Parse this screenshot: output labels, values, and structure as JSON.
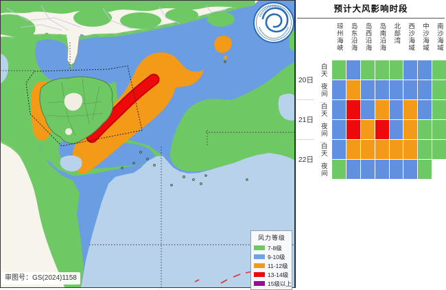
{
  "panel": {
    "title": "预计大风影响时段",
    "columns": [
      "琼州海峡",
      "岛东沿海",
      "岛西沿海",
      "岛南沿海",
      "北部湾",
      "西沙海域",
      "中沙海域",
      "南沙海域"
    ],
    "rows": [
      {
        "date": "20日",
        "period": "白天",
        "cells": [
          "green",
          "blue",
          "green",
          "green",
          "green",
          "blue",
          "blue",
          "green"
        ]
      },
      {
        "date": "20日",
        "period": "夜间",
        "cells": [
          "blue",
          "orange",
          "blue",
          "blue",
          "blue",
          "blue",
          "blue",
          "green"
        ]
      },
      {
        "date": "21日",
        "period": "白天",
        "cells": [
          "blue",
          "red",
          "blue",
          "orange",
          "blue",
          "orange",
          "blue",
          "green"
        ]
      },
      {
        "date": "21日",
        "period": "夜间",
        "cells": [
          "blue",
          "red",
          "orange",
          "red",
          "blue",
          "orange",
          "green",
          "green"
        ]
      },
      {
        "date": "22日",
        "period": "白天",
        "cells": [
          "blue",
          "orange",
          "orange",
          "orange",
          "orange",
          "orange",
          "green",
          "green"
        ]
      },
      {
        "date": "22日",
        "period": "夜间",
        "cells": [
          "green",
          "blue",
          "blue",
          "blue",
          "blue",
          "blue",
          "green",
          "none"
        ]
      }
    ]
  },
  "legend": {
    "title": "风力等级",
    "items": [
      {
        "label": "7-8级",
        "color": "#6ec964"
      },
      {
        "label": "9-10级",
        "color": "#6ba4e8"
      },
      {
        "label": "11-12级",
        "color": "#f39a18"
      },
      {
        "label": "13-14级",
        "color": "#ee0a0a"
      },
      {
        "label": "15级以上",
        "color": "#970f97"
      }
    ]
  },
  "map": {
    "approval_number": "审图号：GS(2024)1158"
  },
  "colors": {
    "green": "#6ec964",
    "blue": "#6190e0",
    "orange": "#f39a18",
    "red": "#ee0a0a",
    "none": "#ffffff",
    "sea": "#6b9de3",
    "pale": "#b7d2ea",
    "land": "#f7f4ec"
  },
  "chart_data": {
    "type": "heatmap",
    "title": "预计大风影响时段",
    "x_labels": [
      "琼州海峡",
      "岛东沿海",
      "岛西沿海",
      "岛南沿海",
      "北部湾",
      "西沙海域",
      "中沙海域",
      "南沙海域"
    ],
    "y_labels": [
      "20日白天",
      "20日夜间",
      "21日白天",
      "21日夜间",
      "22日白天",
      "22日夜间"
    ],
    "legend": [
      "7-8级",
      "9-10级",
      "11-12级",
      "13-14级",
      "15级以上"
    ],
    "values": [
      [
        "7-8级",
        "9-10级",
        "7-8级",
        "7-8级",
        "7-8级",
        "9-10级",
        "9-10级",
        "7-8级"
      ],
      [
        "9-10级",
        "11-12级",
        "9-10级",
        "9-10级",
        "9-10级",
        "9-10级",
        "9-10级",
        "7-8级"
      ],
      [
        "9-10级",
        "13-14级",
        "9-10级",
        "11-12级",
        "9-10级",
        "11-12级",
        "9-10级",
        "7-8级"
      ],
      [
        "9-10级",
        "13-14级",
        "11-12级",
        "13-14级",
        "9-10级",
        "11-12级",
        "7-8级",
        "7-8级"
      ],
      [
        "9-10级",
        "11-12级",
        "11-12级",
        "11-12级",
        "11-12级",
        "11-12级",
        "7-8级",
        "7-8级"
      ],
      [
        "7-8级",
        "9-10级",
        "9-10级",
        "9-10级",
        "9-10级",
        "9-10级",
        "7-8级",
        null
      ]
    ]
  }
}
